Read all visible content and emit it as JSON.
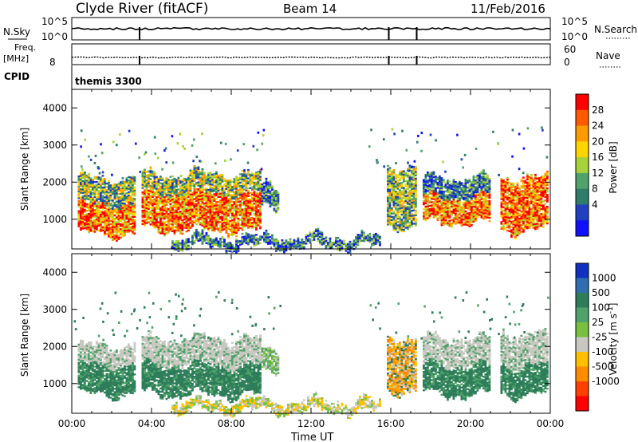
{
  "header": {
    "station": "Clyde River (fitACF)",
    "beam": "Beam 14",
    "date": "11/Feb/2016"
  },
  "top_panels": {
    "nsky_label": "N.Sky",
    "nsky_ticks": [
      "10^5",
      "10^0"
    ],
    "nsearch_label": "N.Search",
    "nsearch_ticks": [
      "10^5",
      "10^0"
    ],
    "freq_label": "Freq.",
    "freq_unit": "[MHz]",
    "freq_ticks": [
      "8"
    ],
    "nave_label": "Nave",
    "nave_ticks": [
      "60",
      "0"
    ],
    "cpid_label": "CPID",
    "cpid_value": "themis 3300",
    "gap_times_hours": [
      3.4,
      15.9,
      17.3
    ]
  },
  "chart_data": [
    {
      "type": "heatmap",
      "name": "power",
      "ylabel": "Slant Range [km]",
      "ylim": [
        200,
        4500
      ],
      "yticks": [
        "1000",
        "2000",
        "3000",
        "4000"
      ],
      "xlim": [
        0,
        24
      ],
      "colorbar": {
        "label": "Power [dB]",
        "ticks": [
          "28",
          "24",
          "20",
          "16",
          "12",
          "8",
          "4"
        ],
        "colors": [
          "#ff0000",
          "#ff5a00",
          "#ff9a00",
          "#ffd400",
          "#a8d23a",
          "#4fa36a",
          "#2e7d6a",
          "#2040c0",
          "#1010ff"
        ]
      },
      "regions": [
        {
          "t": [
            0.3,
            3.2
          ],
          "r": [
            600,
            1400
          ],
          "level": "high"
        },
        {
          "t": [
            0.3,
            3.2
          ],
          "r": [
            1400,
            2100
          ],
          "level": "mid"
        },
        {
          "t": [
            3.5,
            9.5
          ],
          "r": [
            700,
            1700
          ],
          "level": "high"
        },
        {
          "t": [
            3.5,
            9.5
          ],
          "r": [
            1700,
            2200
          ],
          "level": "mid"
        },
        {
          "t": [
            9.5,
            10.4
          ],
          "r": [
            1300,
            1900
          ],
          "level": "low"
        },
        {
          "t": [
            15.8,
            17.3
          ],
          "r": [
            800,
            2400
          ],
          "level": "mid"
        },
        {
          "t": [
            17.6,
            21.0
          ],
          "r": [
            900,
            1600
          ],
          "level": "high"
        },
        {
          "t": [
            17.6,
            21.0
          ],
          "r": [
            1600,
            2100
          ],
          "level": "low"
        },
        {
          "t": [
            21.5,
            23.9
          ],
          "r": [
            700,
            1300
          ],
          "level": "high"
        },
        {
          "t": [
            21.5,
            23.9
          ],
          "r": [
            1300,
            2100
          ],
          "level": "high"
        },
        {
          "t": [
            5.0,
            15.5
          ],
          "r": [
            250,
            500
          ],
          "level": "low"
        }
      ]
    },
    {
      "type": "heatmap",
      "name": "velocity",
      "ylabel": "Slant Range [km]",
      "ylim": [
        200,
        4500
      ],
      "yticks": [
        "1000",
        "2000",
        "3000",
        "4000"
      ],
      "xlim": [
        0,
        24
      ],
      "xlabel": "Time UT",
      "xticks": [
        "00:00",
        "04:00",
        "08:00",
        "12:00",
        "16:00",
        "20:00",
        "00:00"
      ],
      "colorbar": {
        "label": "Velocity [m s",
        "label_sup": "-1",
        "label_end": "]",
        "ticks": [
          "1000",
          "500",
          "100",
          "25",
          "-25",
          "-100",
          "-500",
          "-1000"
        ],
        "colors": [
          "#1030c0",
          "#2e6fb0",
          "#2e7d5a",
          "#4fa36a",
          "#79c040",
          "#c8c8c0",
          "#ffc000",
          "#ff8c00",
          "#ff4000",
          "#ff0000"
        ]
      },
      "regions": [
        {
          "t": [
            0.3,
            3.2
          ],
          "r": [
            700,
            1500
          ],
          "level": "green"
        },
        {
          "t": [
            0.3,
            3.2
          ],
          "r": [
            1500,
            2000
          ],
          "level": "grey"
        },
        {
          "t": [
            3.5,
            9.5
          ],
          "r": [
            700,
            1500
          ],
          "level": "green"
        },
        {
          "t": [
            3.5,
            9.5
          ],
          "r": [
            1500,
            2200
          ],
          "level": "grey"
        },
        {
          "t": [
            9.5,
            10.4
          ],
          "r": [
            1300,
            1900
          ],
          "level": "light"
        },
        {
          "t": [
            15.8,
            17.3
          ],
          "r": [
            800,
            2200
          ],
          "level": "orange"
        },
        {
          "t": [
            17.6,
            21.0
          ],
          "r": [
            700,
            1500
          ],
          "level": "green"
        },
        {
          "t": [
            17.6,
            21.0
          ],
          "r": [
            1500,
            2200
          ],
          "level": "grey"
        },
        {
          "t": [
            21.5,
            23.9
          ],
          "r": [
            700,
            1500
          ],
          "level": "green"
        },
        {
          "t": [
            21.5,
            23.9
          ],
          "r": [
            1500,
            2300
          ],
          "level": "grey"
        },
        {
          "t": [
            5.0,
            15.5
          ],
          "r": [
            250,
            500
          ],
          "level": "yellow"
        }
      ]
    }
  ]
}
